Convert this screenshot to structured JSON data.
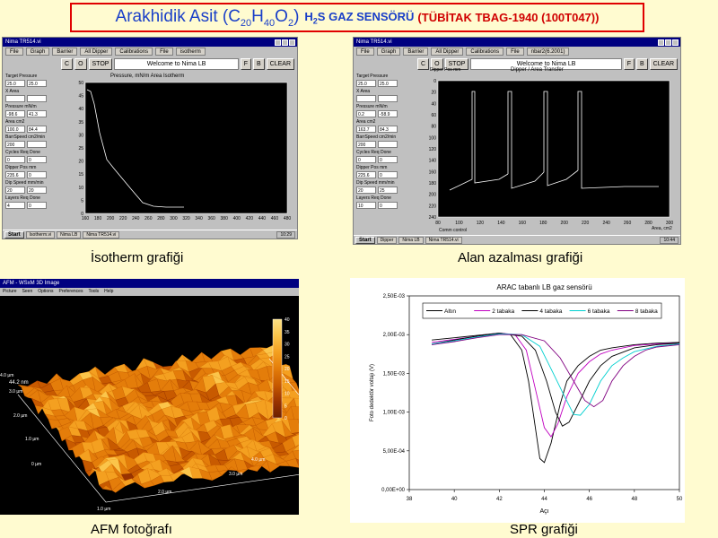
{
  "title": {
    "prefix": "Arakhidik Asit (C",
    "c_sub": "20",
    "h": "H",
    "h_sub": "40",
    "o": "O",
    "o_sub": "2",
    "close": ")",
    "gas_h": "H",
    "gas_sub": "2",
    "gas_rest": "S GAZ SENSÖRÜ",
    "project": "(TÜBİTAK TBAG-1940 (100T047))"
  },
  "captions": {
    "isotherm": "İsotherm grafiği",
    "area": "Alan azalması grafiği",
    "afm": "AFM fotoğrafı",
    "spr": "SPR grafiği"
  },
  "isotherm_window": {
    "window_title": "Nima TR514.vi",
    "menus": [
      "File",
      "Graph",
      "Barrier",
      "All Dipper",
      "Calibrations",
      "File",
      "isotherm"
    ],
    "buttons": [
      "C",
      "O",
      "STOP",
      "F",
      "B",
      "CLEAR"
    ],
    "status": "Welcome to Nima LB",
    "plot_title": "Pressure, mN/m       Area Isotherm",
    "y_ticks": [
      "50",
      "45",
      "40",
      "35",
      "30",
      "25",
      "20",
      "15",
      "10",
      "5",
      "0"
    ],
    "x_ticks": [
      "160",
      "180",
      "200",
      "220",
      "240",
      "260",
      "280",
      "300",
      "320",
      "340",
      "360",
      "380",
      "400",
      "420",
      "440",
      "460",
      "480"
    ],
    "fields": [
      {
        "label": "Target Pressure",
        "a": "25.0",
        "b": "25.0"
      },
      {
        "label": "X Area",
        "a": "",
        "b": ""
      },
      {
        "label": "Pressure mN/m",
        "a": "-98.6",
        "b": "41.3"
      },
      {
        "label": "Area cm2",
        "a": "100.0",
        "b": "84.4"
      },
      {
        "label": "BarrSpeed cm2/min",
        "a": "200",
        "b": ""
      },
      {
        "label": "Cycles Req  Done",
        "a": "0",
        "b": "0"
      },
      {
        "label": "Dipper Pos mm",
        "a": "235.6",
        "b": "0"
      },
      {
        "label": "Dip Speed mm/min",
        "a": "20",
        "b": "20"
      },
      {
        "label": "Layers Req  Done",
        "a": "4",
        "b": "0"
      }
    ],
    "taskbar": [
      "Start",
      "Isotherm.vi",
      "Nima LB",
      "Nima TR514.vi"
    ],
    "clock": "10:29"
  },
  "area_window": {
    "window_title": "Nima TR514.vi",
    "menus": [
      "File",
      "Graph",
      "Barrier",
      "All Dipper",
      "Calibrations",
      "File",
      "nbar2(6.2001)"
    ],
    "buttons": [
      "C",
      "O",
      "STOP",
      "F",
      "B",
      "CLEAR"
    ],
    "status": "Welcome to Nima LB",
    "plot_title": "Dipper / Area Transfer",
    "y_axis_label": "Dipper Pos mm",
    "x_axis_label": "Area, cm2",
    "y_ticks": [
      "0",
      "20",
      "40",
      "60",
      "80",
      "100",
      "120",
      "140",
      "160",
      "180",
      "200",
      "220",
      "240"
    ],
    "x_ticks": [
      "80",
      "100",
      "120",
      "140",
      "160",
      "180",
      "200",
      "220",
      "240",
      "260",
      "280",
      "300"
    ],
    "fields": [
      {
        "label": "Target Pressure",
        "a": "25.0",
        "b": "25.0"
      },
      {
        "label": "X Area",
        "a": "",
        "b": ""
      },
      {
        "label": "Pressure mN/m",
        "a": "0.2",
        "b": "-58.9"
      },
      {
        "label": "Area cm2",
        "a": "163.7",
        "b": "84.3"
      },
      {
        "label": "BarrSpeed cm2/min",
        "a": "200",
        "b": ""
      },
      {
        "label": "Cycles Req  Done",
        "a": "0",
        "b": "0"
      },
      {
        "label": "Dipper Pos mm",
        "a": "225.6",
        "b": "0"
      },
      {
        "label": "Dip Speed mm/min",
        "a": "20",
        "b": "25"
      },
      {
        "label": "Layers Req  Done",
        "a": "10",
        "b": "0"
      }
    ],
    "footer": "Comm control",
    "taskbar": [
      "Start",
      "Dipper",
      "Nima LB",
      "Nima TR514.vi"
    ],
    "clock": "10:44"
  },
  "afm_window": {
    "window_title": "AFM - WSxM 3D Image",
    "menus": [
      "Picture",
      "Seen",
      "Options",
      "Preferences",
      "Tools",
      "Help"
    ],
    "z_label": "44.2 nm",
    "z_ticks": [
      "40",
      "35",
      "30",
      "25",
      "20",
      "15",
      "10",
      "5",
      "0"
    ],
    "axis_labels": [
      "4.0 µm",
      "3.0 µm",
      "2.0 µm",
      "1.0 µm",
      "0 µm",
      "1.0 µm",
      "2.0 µm",
      "3.0 µm",
      "4.0 µm"
    ]
  },
  "chart_data": {
    "type": "line",
    "title": "ARAC tabanlı LB gaz sensörü",
    "xlabel": "Açı",
    "ylabel": "Foto dedektör voltajı (V)",
    "xlim": [
      38,
      50
    ],
    "ylim": [
      0,
      0.0025
    ],
    "x_ticks": [
      "38",
      "40",
      "42",
      "44",
      "46",
      "48",
      "50"
    ],
    "y_ticks": [
      "0,00E+00",
      "5,00E-04",
      "1,00E-03",
      "1,50E-03",
      "2,00E-03",
      "2,50E-03"
    ],
    "legend_position": "top",
    "series": [
      {
        "name": "Altın",
        "color": "#000000",
        "x": [
          39,
          40,
          41,
          42,
          42.5,
          43,
          43.3,
          43.6,
          43.8,
          44,
          44.3,
          44.7,
          45,
          45.5,
          46,
          46.5,
          47,
          48,
          49,
          50
        ],
        "y": [
          0.00193,
          0.00196,
          0.00199,
          0.00202,
          0.002,
          0.0018,
          0.0014,
          0.0008,
          0.0004,
          0.00035,
          0.0006,
          0.0011,
          0.0014,
          0.0016,
          0.00172,
          0.0018,
          0.00183,
          0.00187,
          0.00189,
          0.0019
        ]
      },
      {
        "name": "2 tabaka",
        "color": "#c000c0",
        "x": [
          39,
          40,
          41,
          42,
          42.7,
          43.2,
          43.6,
          44,
          44.3,
          44.6,
          45,
          45.5,
          46,
          46.5,
          47,
          48,
          49,
          50
        ],
        "y": [
          0.0019,
          0.00194,
          0.00198,
          0.00202,
          0.002,
          0.0018,
          0.0013,
          0.0008,
          0.00068,
          0.00085,
          0.0012,
          0.0015,
          0.00165,
          0.00175,
          0.0018,
          0.00186,
          0.00188,
          0.00189
        ]
      },
      {
        "name": "4 tabaka",
        "color": "#000000",
        "x": [
          39,
          40,
          41,
          42,
          43,
          43.6,
          44.1,
          44.5,
          44.8,
          45.1,
          45.5,
          46,
          46.5,
          47,
          48,
          49,
          50
        ],
        "y": [
          0.00188,
          0.00193,
          0.00198,
          0.00202,
          0.00198,
          0.0018,
          0.0014,
          0.001,
          0.00082,
          0.00087,
          0.0011,
          0.0014,
          0.0016,
          0.00172,
          0.00183,
          0.00187,
          0.00189
        ]
      },
      {
        "name": "6 tabaka",
        "color": "#00d0d0",
        "x": [
          39,
          40,
          41,
          42,
          43,
          43.8,
          44.4,
          44.9,
          45.3,
          45.6,
          46,
          46.5,
          47,
          47.5,
          48,
          49,
          50
        ],
        "y": [
          0.00188,
          0.00192,
          0.00197,
          0.00201,
          0.002,
          0.00185,
          0.0015,
          0.0012,
          0.00097,
          0.00096,
          0.0011,
          0.0014,
          0.0016,
          0.0017,
          0.00178,
          0.00185,
          0.00188
        ]
      },
      {
        "name": "8 tabaka",
        "color": "#800080",
        "x": [
          39,
          40,
          41,
          42,
          43,
          44,
          44.7,
          45.3,
          45.8,
          46.2,
          46.6,
          47,
          47.5,
          48,
          48.5,
          49,
          50
        ],
        "y": [
          0.00187,
          0.00191,
          0.00196,
          0.002,
          0.002,
          0.00192,
          0.0017,
          0.0014,
          0.00115,
          0.00107,
          0.00115,
          0.0014,
          0.0016,
          0.00172,
          0.0018,
          0.00184,
          0.00187
        ]
      }
    ]
  }
}
